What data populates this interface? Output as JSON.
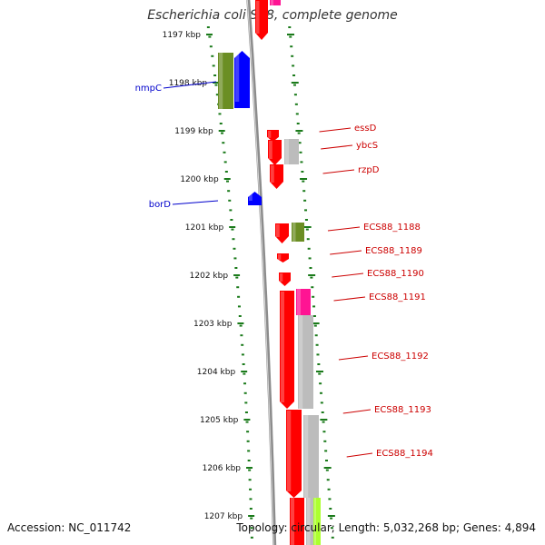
{
  "title": "Escherichia coli S88, complete genome",
  "footer": {
    "accession": "Accession: NC_011742",
    "topology": "Topology: circular; Length: 5,032,268 bp; Genes: 4,894"
  },
  "colors": {
    "backbone": "#8c8c8c",
    "tick": "#1a7a1a",
    "label_left": "#0000cc",
    "label_right": "#cc0000",
    "forward_cds": "#0000ff",
    "forward_other": "#6b8e23",
    "reverse_cds": "#ff0000",
    "reverse_gray": "#bcbcbc",
    "reverse_magenta": "#ff1493",
    "reverse_lime": "#adff2f"
  },
  "ticks": [
    {
      "label": "1197 kbp",
      "kbp": 1197
    },
    {
      "label": "1198 kbp",
      "kbp": 1198
    },
    {
      "label": "1199 kbp",
      "kbp": 1199
    },
    {
      "label": "1200 kbp",
      "kbp": 1200
    },
    {
      "label": "1201 kbp",
      "kbp": 1201
    },
    {
      "label": "1202 kbp",
      "kbp": 1202
    },
    {
      "label": "1203 kbp",
      "kbp": 1203
    },
    {
      "label": "1204 kbp",
      "kbp": 1204
    },
    {
      "label": "1205 kbp",
      "kbp": 1205
    },
    {
      "label": "1206 kbp",
      "kbp": 1206
    },
    {
      "label": "1207 kbp",
      "kbp": 1207
    }
  ],
  "left_labels": [
    {
      "name": "nmpC",
      "kbp": 1198.1
    },
    {
      "name": "borD",
      "kbp": 1200.5
    }
  ],
  "right_labels": [
    {
      "name": "essD",
      "kbp": 1199.0
    },
    {
      "name": "ybcS",
      "kbp": 1199.3
    },
    {
      "name": "rzpD",
      "kbp": 1199.8
    },
    {
      "name": "ECS88_1188",
      "kbp": 1201.0
    },
    {
      "name": "ECS88_1189",
      "kbp": 1201.45
    },
    {
      "name": "ECS88_1190",
      "kbp": 1201.95
    },
    {
      "name": "ECS88_1191",
      "kbp": 1202.45
    },
    {
      "name": "ECS88_1192",
      "kbp": 1203.7
    },
    {
      "name": "ECS88_1193",
      "kbp": 1204.85
    },
    {
      "name": "ECS88_1194",
      "kbp": 1205.75
    }
  ]
}
